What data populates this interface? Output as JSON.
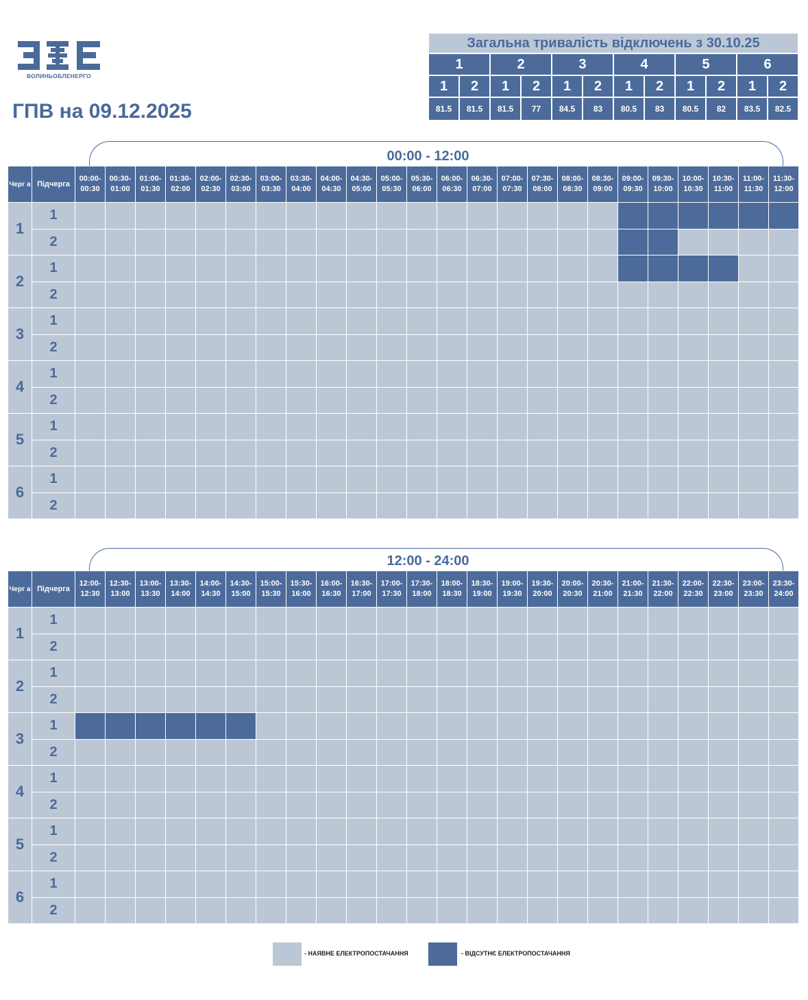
{
  "logo": {
    "caption": "ВОЛИНЬОБЛЕНЕРГО"
  },
  "page_title": "ГПВ на 09.12.2025",
  "summary": {
    "title": "Загальна тривалість відключень з 30.10.25",
    "queues": [
      "1",
      "2",
      "3",
      "4",
      "5",
      "6"
    ],
    "subqueues": [
      "1",
      "2",
      "1",
      "2",
      "1",
      "2",
      "1",
      "2",
      "1",
      "2",
      "1",
      "2"
    ],
    "values": [
      "81.5",
      "81.5",
      "81.5",
      "77",
      "84.5",
      "83",
      "80.5",
      "83",
      "80.5",
      "82",
      "83.5",
      "82.5"
    ]
  },
  "headers": {
    "queue": "Черг а",
    "subqueue": "Підчерга"
  },
  "blocks": [
    {
      "range_label": "00:00 - 12:00",
      "slots": [
        "00:00- 00:30",
        "00:30- 01:00",
        "01:00- 01:30",
        "01:30- 02:00",
        "02:00- 02:30",
        "02:30- 03:00",
        "03:00- 03:30",
        "03:30- 04:00",
        "04:00- 04:30",
        "04:30- 05:00",
        "05:00- 05:30",
        "05:30- 06:00",
        "06:00- 06:30",
        "06:30- 07:00",
        "07:00- 07:30",
        "07:30- 08:00",
        "08:00- 08:30",
        "08:30- 09:00",
        "09:00- 09:30",
        "09:30- 10:00",
        "10:00- 10:30",
        "10:30- 11:00",
        "11:00- 11:30",
        "11:30- 12:00"
      ],
      "outages": {
        "1-1": [
          18,
          19,
          20,
          21,
          22,
          23
        ],
        "1-2": [
          18,
          19
        ],
        "2-1": [
          18,
          19,
          20,
          21
        ]
      }
    },
    {
      "range_label": "12:00 - 24:00",
      "slots": [
        "12:00- 12:30",
        "12:30- 13:00",
        "13:00- 13:30",
        "13:30- 14:00",
        "14:00- 14:30",
        "14:30- 15:00",
        "15:00- 15:30",
        "15:30- 16:00",
        "16:00- 16:30",
        "16:30- 17:00",
        "17:00- 17:30",
        "17:30- 18:00",
        "18:00- 18:30",
        "18:30- 19:00",
        "19:00- 19:30",
        "19:30- 20:00",
        "20:00- 20:30",
        "20:30- 21:00",
        "21:00- 21:30",
        "21:30- 22:00",
        "22:00- 22:30",
        "22:30- 23:00",
        "23:00- 23:30",
        "23:30- 24:00"
      ],
      "outages": {
        "3-1": [
          0,
          1,
          2,
          3,
          4,
          5
        ]
      }
    }
  ],
  "queues": [
    "1",
    "2",
    "3",
    "4",
    "5",
    "6"
  ],
  "subqueue_labels": [
    "1",
    "2"
  ],
  "colors": {
    "available": "#bcc7d6",
    "unavailable": "#4c6b9a",
    "accent": "#4a6a9a"
  },
  "legend": {
    "available": "- НАЯВНЕ ЕЛЕКТРОПОСТАЧАННЯ",
    "unavailable": "- ВІДСУТНЄ ЕЛЕКТРОПОСТАЧАННЯ"
  }
}
